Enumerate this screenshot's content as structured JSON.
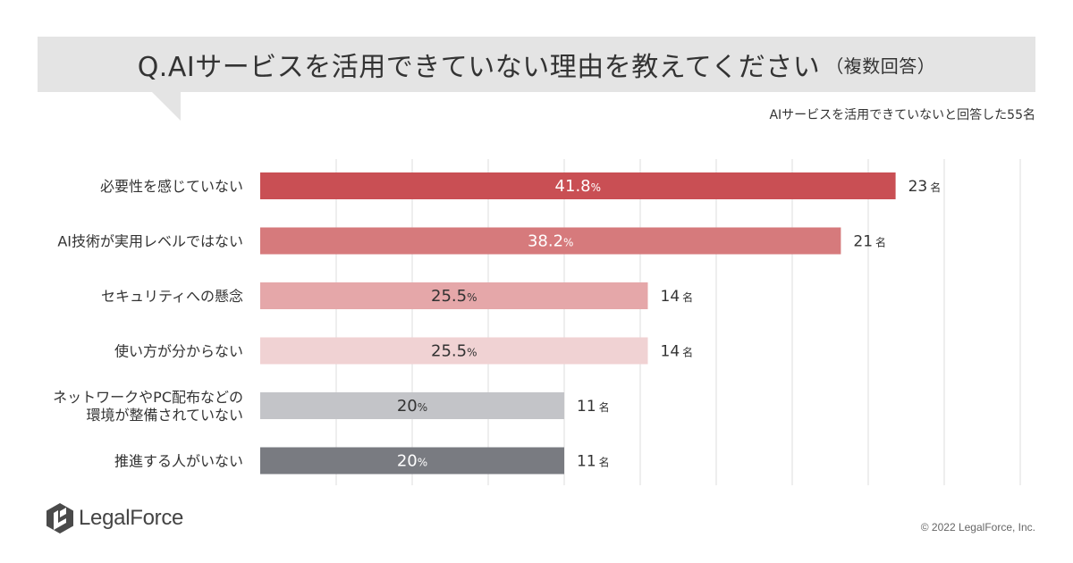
{
  "title": "Q.AIサービスを活用できていない理由を教えてください",
  "title_note": "（複数回答）",
  "respondents": "AIサービスを活用できていないと回答した55名",
  "chart_data": {
    "type": "bar",
    "orientation": "horizontal",
    "categories": [
      [
        "必要性を感じていない"
      ],
      [
        "AI技術が実用レベルではない"
      ],
      [
        "セキュリティへの懸念"
      ],
      [
        "使い方が分からない"
      ],
      [
        "ネットワークやPC配布などの",
        "環境が整備されていない"
      ],
      [
        "推進する人がいない"
      ]
    ],
    "values": [
      41.8,
      38.2,
      25.5,
      25.5,
      20,
      20
    ],
    "value_labels": [
      "41.8",
      "38.2",
      "25.5",
      "25.5",
      "20",
      "20"
    ],
    "value_unit": "%",
    "counts": [
      23,
      21,
      14,
      14,
      11,
      11
    ],
    "count_unit": "名",
    "colors": [
      "#c94f54",
      "#d67a7c",
      "#e5a7a9",
      "#f0d2d3",
      "#c3c4c8",
      "#797b81"
    ],
    "label_colors": [
      "#ffffff",
      "#ffffff",
      "#333333",
      "#333333",
      "#333333",
      "#ffffff"
    ],
    "xlim": [
      0,
      50
    ],
    "gridlines": 10
  },
  "logo": {
    "text": "LegalForce",
    "icon": "legalforce-logo-icon",
    "color": "#444444"
  },
  "copyright": "© 2022 LegalForce, Inc."
}
